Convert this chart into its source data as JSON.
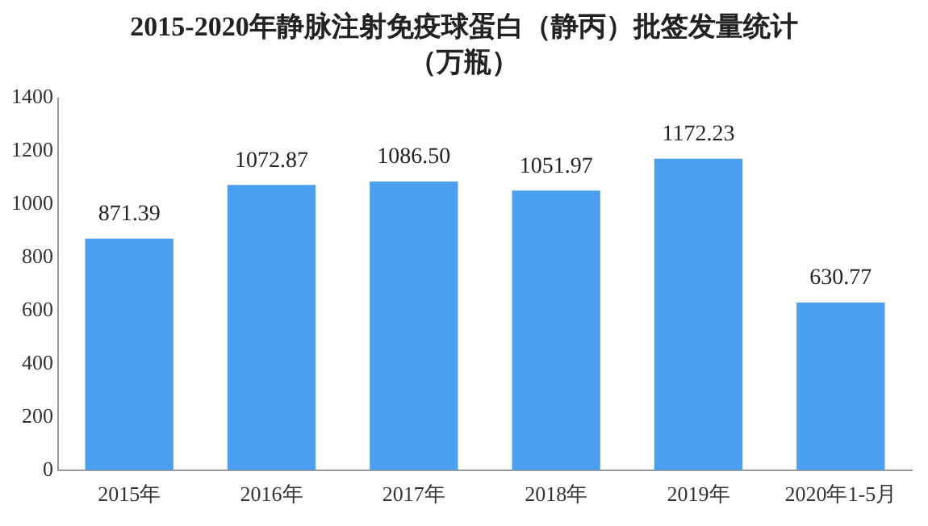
{
  "chart_data": {
    "type": "bar",
    "title": "2015-2020年静脉注射免疫球蛋白（静丙）批签发量统计（万瓶）",
    "categories": [
      "2015年",
      "2016年",
      "2017年",
      "2018年",
      "2019年",
      "2020年1-5月"
    ],
    "values": [
      871.39,
      1072.87,
      1086.5,
      1051.97,
      1172.23,
      630.77
    ],
    "value_labels": [
      "871.39",
      "1072.87",
      "1086.50",
      "1051.97",
      "1172.23",
      "630.77"
    ],
    "color": "#4a9ff0",
    "ylim": [
      0,
      1400
    ],
    "yticks": [
      0,
      200,
      400,
      600,
      800,
      1000,
      1200,
      1400
    ],
    "grid": false,
    "legend": false
  }
}
